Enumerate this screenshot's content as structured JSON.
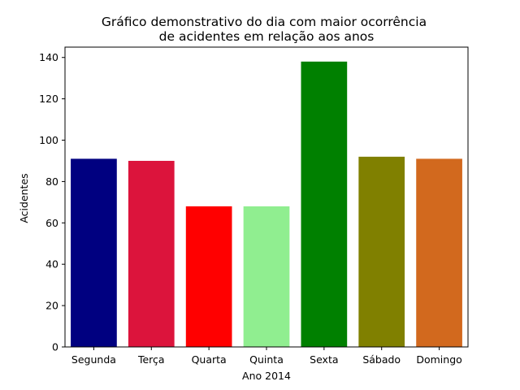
{
  "chart_data": {
    "type": "bar",
    "title_lines": [
      "Gráfico demonstrativo do dia com maior ocorrência",
      "de acidentes em relação aos anos"
    ],
    "xlabel": "Ano 2014",
    "ylabel": "Acidentes",
    "categories": [
      "Segunda",
      "Terça",
      "Quarta",
      "Quinta",
      "Sexta",
      "Sábado",
      "Domingo"
    ],
    "values": [
      91,
      90,
      68,
      68,
      138,
      92,
      91
    ],
    "colors": [
      "#000080",
      "#dc143c",
      "#ff0000",
      "#90ee90",
      "#008000",
      "#808000",
      "#d2691e"
    ],
    "ylim": [
      0,
      145
    ],
    "yticks": [
      0,
      20,
      40,
      60,
      80,
      100,
      120,
      140
    ],
    "grid": false,
    "legend": "none"
  }
}
